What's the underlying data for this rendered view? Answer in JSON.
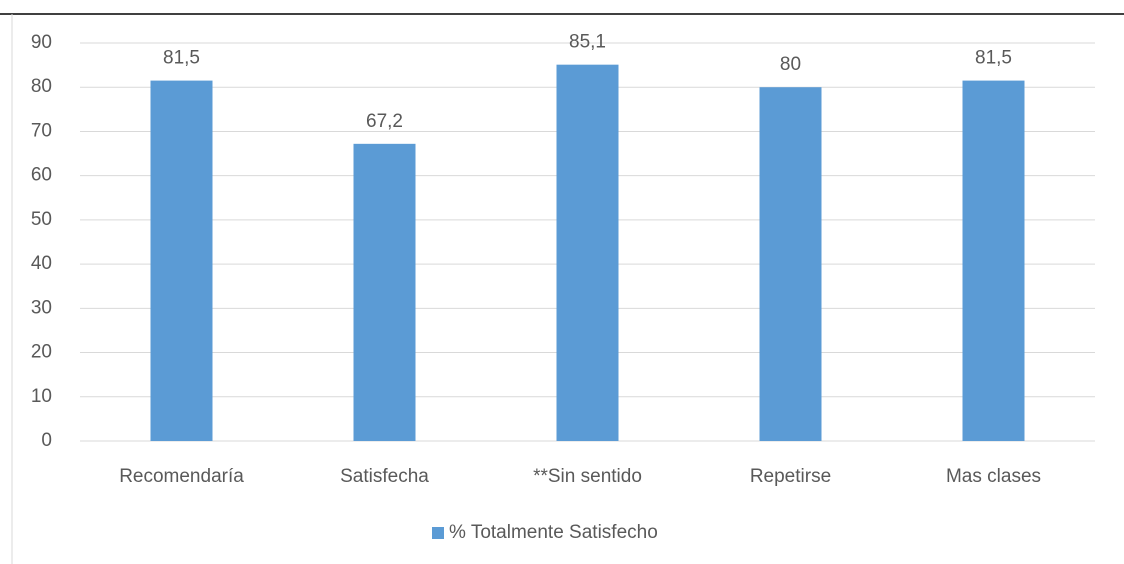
{
  "chart_data": {
    "type": "bar",
    "categories": [
      "Recomendaría",
      "Satisfecha",
      "**Sin sentido",
      "Repetirse",
      "Mas clases"
    ],
    "series": [
      {
        "name": "% Totalmente Satisfecho",
        "color": "#5b9bd5",
        "values": [
          81.5,
          67.2,
          85.1,
          80,
          81.5
        ],
        "value_labels": [
          "81,5",
          "67,2",
          "85,1",
          "80",
          "81,5"
        ]
      }
    ],
    "ylim": [
      0,
      90
    ],
    "yticks": [
      0,
      10,
      20,
      30,
      40,
      50,
      60,
      70,
      80,
      90
    ],
    "grid": true,
    "legend": "bottom"
  }
}
